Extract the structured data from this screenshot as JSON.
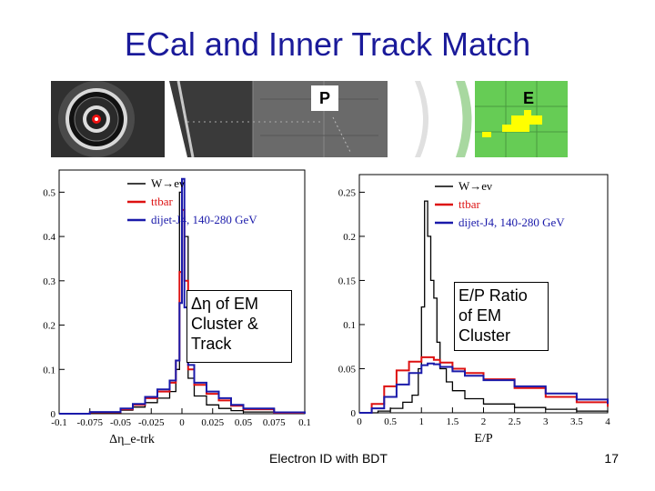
{
  "slide": {
    "title": "ECal and Inner Track Match",
    "footer_center": "Electron ID with BDT",
    "page_number": "17",
    "banner_label_p": "P",
    "banner_label_e": "E"
  },
  "annotations": {
    "left_box": [
      "Δη of EM",
      "Cluster &",
      "Track"
    ],
    "right_box": [
      "E/P Ratio",
      "of EM",
      "Cluster"
    ]
  },
  "colors": {
    "wenu": "#000000",
    "ttbar": "#dd1111",
    "dijet": "#1a1aaa",
    "title": "#1a1a9a",
    "banner_green": "#66cc55",
    "banner_yellow": "#ffff00"
  },
  "chart_data": [
    {
      "type": "line",
      "xlabel": "Δη_e-trk",
      "ylabel": "",
      "xlim": [
        -0.1,
        0.1
      ],
      "ylim": [
        0,
        0.55
      ],
      "xticks": [
        "-0.1",
        "-0.075",
        "-0.05",
        "-0.025",
        "0",
        "0.025",
        "0.05",
        "0.075",
        "0.1"
      ],
      "yticks": [
        "0",
        "0.1",
        "0.2",
        "0.3",
        "0.4",
        "0.5"
      ],
      "legend": [
        "W→eν",
        "ttbar",
        "dijet-J4, 140-280 GeV"
      ],
      "legend_position": "top-right",
      "series": [
        {
          "name": "W→eν",
          "x": [
            -0.1,
            -0.075,
            -0.05,
            -0.04,
            -0.03,
            -0.02,
            -0.01,
            -0.005,
            -0.002,
            0,
            0.002,
            0.005,
            0.01,
            0.02,
            0.03,
            0.04,
            0.05,
            0.075,
            0.1
          ],
          "y": [
            0,
            0.002,
            0.008,
            0.015,
            0.025,
            0.035,
            0.05,
            0.1,
            0.5,
            0.52,
            0.4,
            0.08,
            0.04,
            0.02,
            0.012,
            0.007,
            0.004,
            0.001,
            0
          ]
        },
        {
          "name": "ttbar",
          "x": [
            -0.1,
            -0.075,
            -0.05,
            -0.04,
            -0.03,
            -0.02,
            -0.01,
            -0.005,
            -0.002,
            0,
            0.002,
            0.005,
            0.01,
            0.02,
            0.03,
            0.04,
            0.05,
            0.075,
            0.1
          ],
          "y": [
            0,
            0.003,
            0.01,
            0.02,
            0.035,
            0.05,
            0.07,
            0.12,
            0.32,
            0.46,
            0.3,
            0.1,
            0.065,
            0.045,
            0.03,
            0.018,
            0.01,
            0.002,
            0
          ]
        },
        {
          "name": "dijet-J4, 140-280 GeV",
          "x": [
            -0.1,
            -0.075,
            -0.05,
            -0.04,
            -0.03,
            -0.02,
            -0.01,
            -0.005,
            -0.002,
            0,
            0.002,
            0.005,
            0.01,
            0.02,
            0.03,
            0.04,
            0.05,
            0.075,
            0.1
          ],
          "y": [
            0,
            0.004,
            0.012,
            0.022,
            0.038,
            0.055,
            0.075,
            0.12,
            0.25,
            0.53,
            0.24,
            0.11,
            0.07,
            0.05,
            0.035,
            0.02,
            0.012,
            0.003,
            0
          ]
        }
      ]
    },
    {
      "type": "line",
      "xlabel": "E/P",
      "ylabel": "",
      "xlim": [
        0,
        4
      ],
      "ylim": [
        0,
        0.27
      ],
      "xticks": [
        "0",
        "0.5",
        "1",
        "1.5",
        "2",
        "2.5",
        "3",
        "3.5",
        "4"
      ],
      "yticks": [
        "0",
        "0.05",
        "0.1",
        "0.15",
        "0.2",
        "0.25"
      ],
      "legend": [
        "W→eν",
        "ttbar",
        "dijet-J4, 140-280 GeV"
      ],
      "legend_position": "top-right",
      "series": [
        {
          "name": "W→eν",
          "x": [
            0,
            0.3,
            0.5,
            0.7,
            0.85,
            0.95,
            1.0,
            1.05,
            1.1,
            1.15,
            1.2,
            1.25,
            1.3,
            1.4,
            1.5,
            1.7,
            2.0,
            2.5,
            3.0,
            3.5,
            4.0
          ],
          "y": [
            0,
            0.002,
            0.005,
            0.012,
            0.02,
            0.05,
            0.12,
            0.24,
            0.2,
            0.15,
            0.13,
            0.08,
            0.05,
            0.035,
            0.025,
            0.016,
            0.01,
            0.006,
            0.004,
            0.002,
            0.001
          ]
        },
        {
          "name": "ttbar",
          "x": [
            0,
            0.2,
            0.4,
            0.6,
            0.8,
            1.0,
            1.1,
            1.2,
            1.3,
            1.5,
            1.7,
            2.0,
            2.5,
            3.0,
            3.5,
            4.0
          ],
          "y": [
            0,
            0.01,
            0.03,
            0.048,
            0.058,
            0.063,
            0.063,
            0.06,
            0.057,
            0.05,
            0.045,
            0.038,
            0.028,
            0.018,
            0.012,
            0.007
          ]
        },
        {
          "name": "dijet-J4, 140-280 GeV",
          "x": [
            0,
            0.2,
            0.4,
            0.6,
            0.8,
            1.0,
            1.1,
            1.2,
            1.3,
            1.5,
            1.7,
            2.0,
            2.5,
            3.0,
            3.5,
            4.0
          ],
          "y": [
            0,
            0.005,
            0.018,
            0.032,
            0.045,
            0.054,
            0.056,
            0.055,
            0.052,
            0.047,
            0.042,
            0.037,
            0.03,
            0.022,
            0.015,
            0.01
          ]
        }
      ]
    }
  ]
}
